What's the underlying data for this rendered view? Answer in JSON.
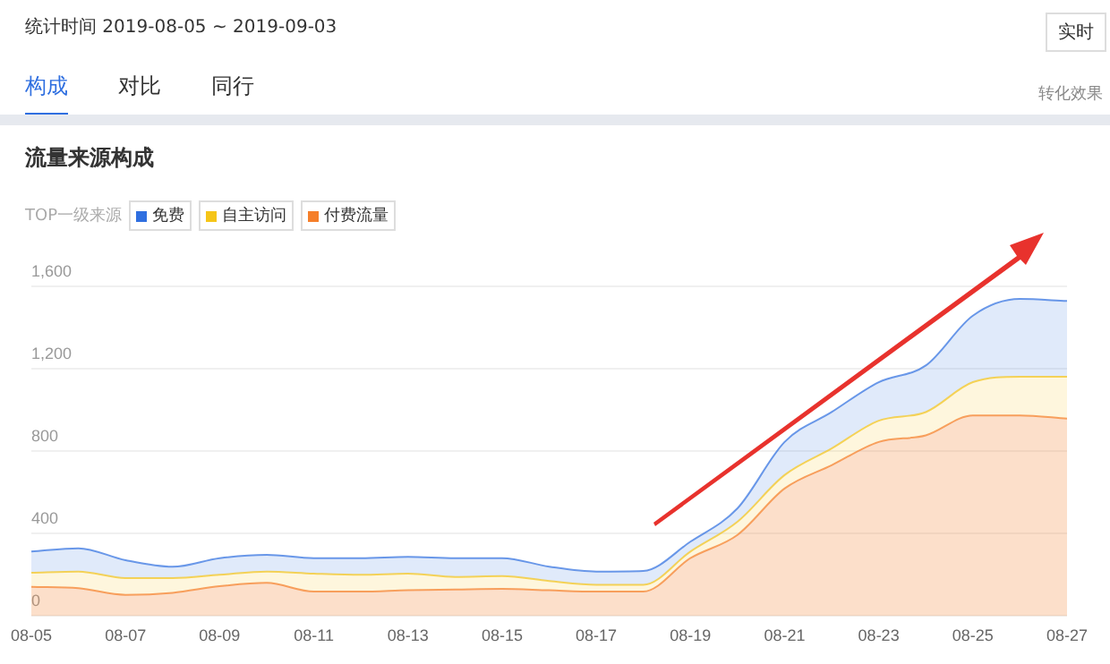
{
  "chart_data": {
    "type": "area",
    "title": "流量来源构成",
    "subtitle": "统计时间 2019-08-05 ~ 2019-09-03",
    "legend_title": "TOP一级来源",
    "annotations": [
      "实时",
      "构成",
      "对比",
      "同行",
      "转化效果"
    ],
    "categories": [
      "08-05",
      null,
      "08-07",
      null,
      "08-09",
      null,
      "08-11",
      null,
      "08-13",
      null,
      "08-15",
      null,
      "08-17",
      null,
      "08-19",
      null,
      "08-21",
      null,
      "08-23",
      null,
      "08-25",
      null,
      "08-27"
    ],
    "stacked": true,
    "series": [
      {
        "name": "付费流量",
        "color": "#f57f2a",
        "values": [
          142,
          135,
          103,
          113,
          145,
          161,
          119,
          119,
          126,
          129,
          132,
          125,
          119,
          119,
          281,
          394,
          619,
          732,
          845,
          877,
          974,
          974,
          958
        ]
      },
      {
        "name": "自主访问",
        "color": "#f5c518",
        "values": [
          68,
          81,
          81,
          71,
          55,
          55,
          87,
          81,
          80,
          61,
          62,
          45,
          33,
          33,
          32,
          64,
          65,
          81,
          103,
          113,
          161,
          187,
          203
        ]
      },
      {
        "name": "免费",
        "color": "#2f6fe0",
        "values": [
          103,
          113,
          87,
          55,
          81,
          81,
          75,
          81,
          81,
          91,
          87,
          70,
          64,
          67,
          48,
          65,
          161,
          177,
          187,
          226,
          323,
          378,
          368
        ]
      }
    ],
    "ylim": [
      0,
      1600
    ],
    "yticks": [
      {
        "value": 0,
        "label": "0"
      },
      {
        "value": 400,
        "label": "400"
      },
      {
        "value": 800,
        "label": "800"
      },
      {
        "value": 1200,
        "label": "1,200"
      },
      {
        "value": 1600,
        "label": "1,600"
      }
    ],
    "grid": "y",
    "legend": "top left",
    "marker": "none",
    "line_style": "solid"
  }
}
